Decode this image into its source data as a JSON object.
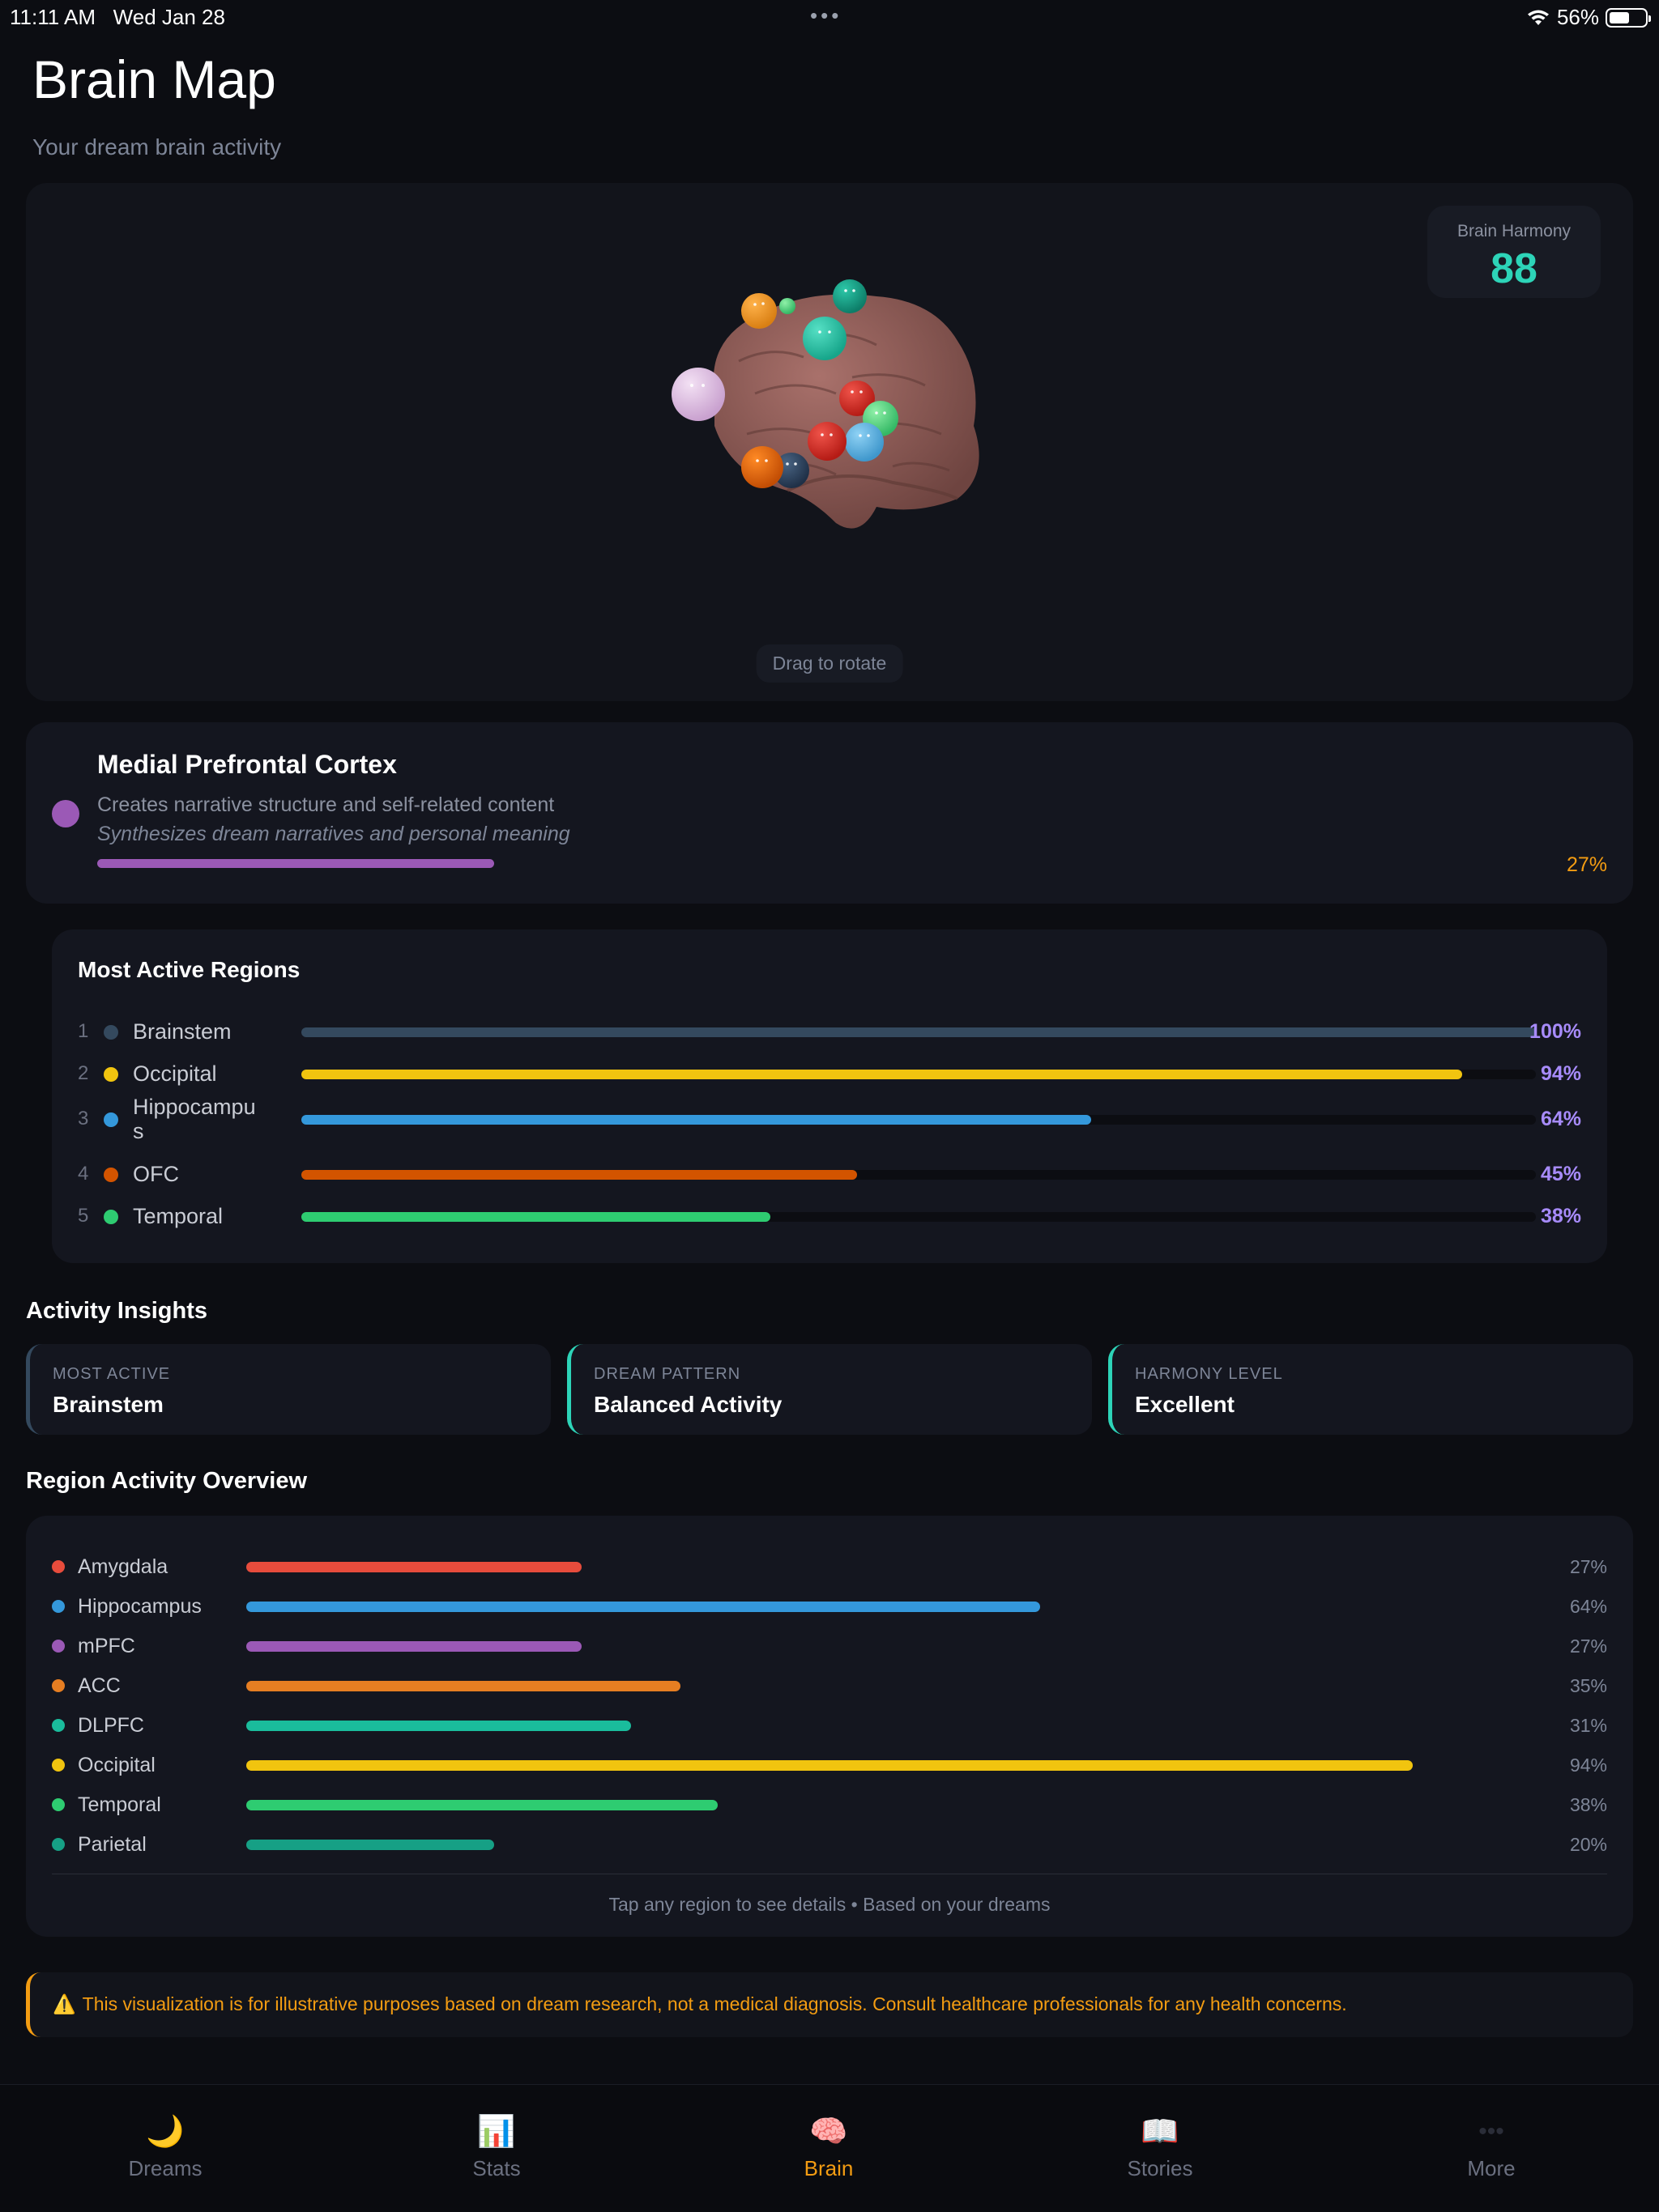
{
  "status": {
    "time": "11:11 AM",
    "date": "Wed Jan 28",
    "battery": "56%",
    "battery_level": 0.56
  },
  "header": {
    "title": "Brain Map",
    "subtitle": "Your dream brain activity"
  },
  "viewer": {
    "harmony_label": "Brain Harmony",
    "harmony_value": "88",
    "hint": "Drag to rotate"
  },
  "selected_region": {
    "name": "Medial Prefrontal Cortex",
    "description": "Creates narrative structure and self-related content",
    "role": "Synthesizes dream narratives and personal meaning",
    "percent": "27%",
    "color": "#9b59b6"
  },
  "most_active": {
    "title": "Most Active Regions",
    "rows": [
      {
        "rank": "1",
        "label": "Brainstem",
        "pct": "100%",
        "value": 100,
        "color": "#34495e"
      },
      {
        "rank": "2",
        "label": "Occipital",
        "pct": "94%",
        "value": 94,
        "color": "#f1c40f"
      },
      {
        "rank": "3",
        "label": "Hippocampus",
        "pct": "64%",
        "value": 64,
        "color": "#3498db"
      },
      {
        "rank": "4",
        "label": "OFC",
        "pct": "45%",
        "value": 45,
        "color": "#d35400"
      },
      {
        "rank": "5",
        "label": "Temporal",
        "pct": "38%",
        "value": 38,
        "color": "#2ecc71"
      }
    ]
  },
  "insights": {
    "title": "Activity Insights",
    "items": [
      {
        "label": "MOST ACTIVE",
        "value": "Brainstem",
        "color": "#34495e"
      },
      {
        "label": "DREAM PATTERN",
        "value": "Balanced Activity",
        "color": "#2dd4b8"
      },
      {
        "label": "HARMONY LEVEL",
        "value": "Excellent",
        "color": "#2dd4b8"
      }
    ]
  },
  "overview": {
    "title": "Region Activity Overview",
    "rows": [
      {
        "label": "Amygdala",
        "pct": "27%",
        "value": 27,
        "color": "#e74c3c"
      },
      {
        "label": "Hippocampus",
        "pct": "64%",
        "value": 64,
        "color": "#3498db"
      },
      {
        "label": "mPFC",
        "pct": "27%",
        "value": 27,
        "color": "#9b59b6"
      },
      {
        "label": "ACC",
        "pct": "35%",
        "value": 35,
        "color": "#e67e22"
      },
      {
        "label": "DLPFC",
        "pct": "31%",
        "value": 31,
        "color": "#1abc9c"
      },
      {
        "label": "Occipital",
        "pct": "94%",
        "value": 94,
        "color": "#f1c40f"
      },
      {
        "label": "Temporal",
        "pct": "38%",
        "value": 38,
        "color": "#2ecc71"
      },
      {
        "label": "Parietal",
        "pct": "20%",
        "value": 20,
        "color": "#16a085"
      }
    ],
    "footer": "Tap any region to see details • Based on your dreams"
  },
  "disclaimer": "This visualization is for illustrative purposes based on dream research, not a medical diagnosis. Consult healthcare professionals for any health concerns.",
  "tabs": [
    {
      "label": "Dreams",
      "icon": "crescent-moon-icon",
      "glyph": "🌙",
      "active": false
    },
    {
      "label": "Stats",
      "icon": "bar-chart-icon",
      "glyph": "📊",
      "active": false
    },
    {
      "label": "Brain",
      "icon": "brain-icon",
      "glyph": "🧠",
      "active": true
    },
    {
      "label": "Stories",
      "icon": "open-book-icon",
      "glyph": "📖",
      "active": false
    },
    {
      "label": "More",
      "icon": "more-dots-icon",
      "glyph": "•••",
      "active": false
    }
  ]
}
